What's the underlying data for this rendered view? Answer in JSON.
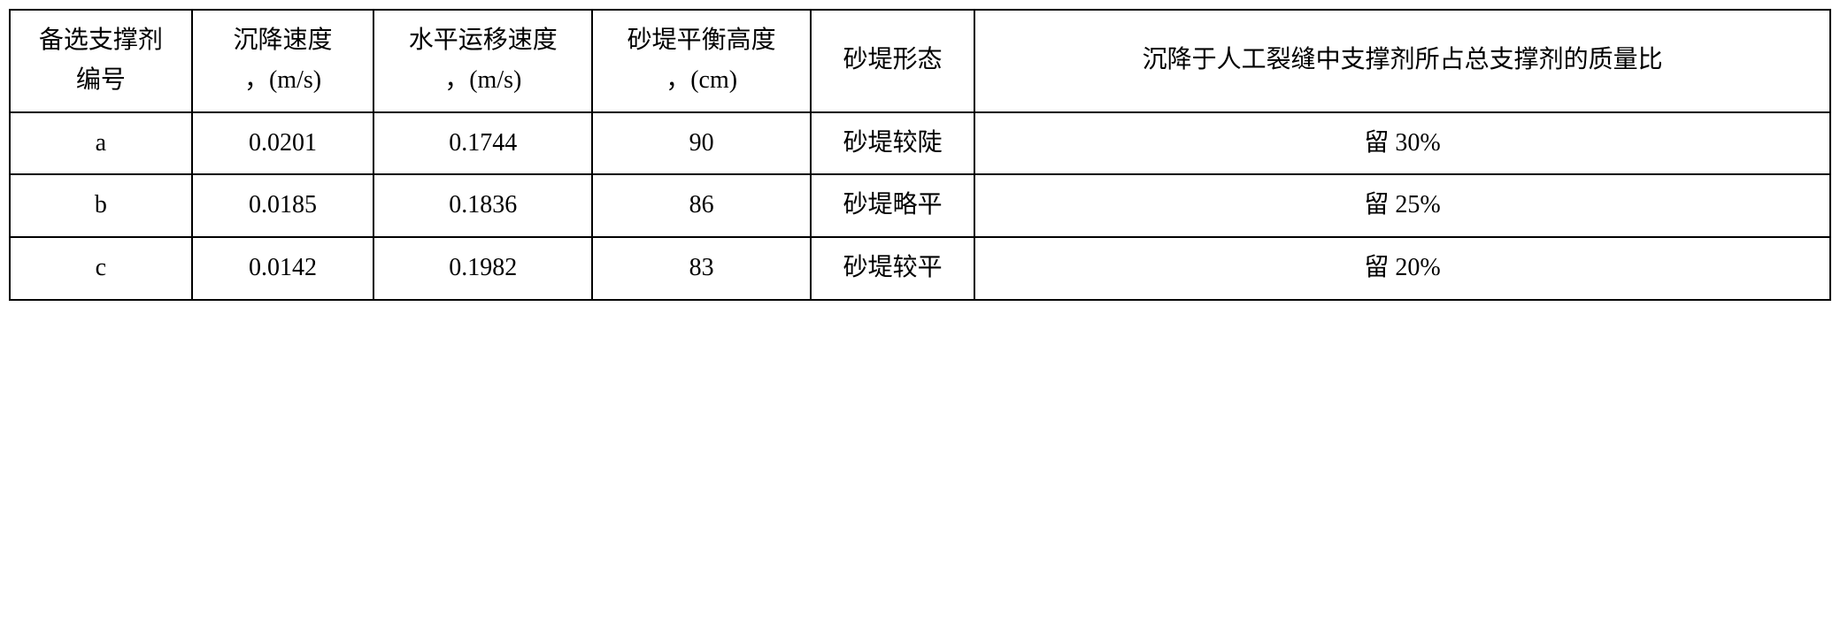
{
  "table": {
    "type": "table",
    "background_color": "#ffffff",
    "border_color": "#000000",
    "border_width": 2,
    "font_family": "SimSun",
    "font_size_pt": 21,
    "text_color": "#000000",
    "column_widths_pct": [
      10,
      10,
      12,
      12,
      9,
      47
    ],
    "columns": [
      "备选支撑剂\n编号",
      "沉降速度\n，(m/s)",
      "水平运移速度\n，(m/s)",
      "砂堤平衡高度\n，(cm)",
      "砂堤形态",
      "沉降于人工裂缝中支撑剂所占总支撑剂的质量比"
    ],
    "rows": [
      {
        "id": "a",
        "settling_velocity": "0.0201",
        "horizontal_velocity": "0.1744",
        "sand_dike_height": "90",
        "sand_dike_shape": "砂堤较陡",
        "mass_ratio": "留 30%"
      },
      {
        "id": "b",
        "settling_velocity": "0.0185",
        "horizontal_velocity": "0.1836",
        "sand_dike_height": "86",
        "sand_dike_shape": "砂堤略平",
        "mass_ratio": "留 25%"
      },
      {
        "id": "c",
        "settling_velocity": "0.0142",
        "horizontal_velocity": "0.1982",
        "sand_dike_height": "83",
        "sand_dike_shape": "砂堤较平",
        "mass_ratio": "留 20%"
      }
    ]
  }
}
